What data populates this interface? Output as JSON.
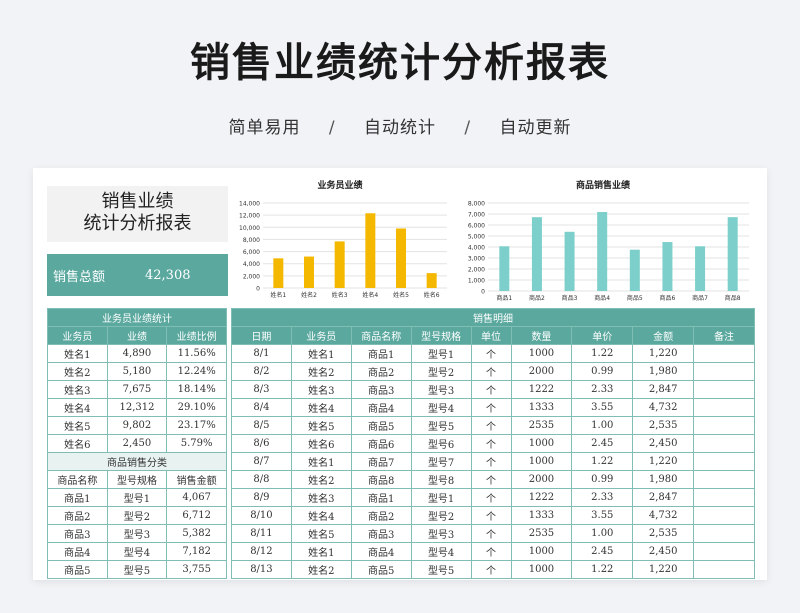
{
  "page": {
    "title": "销售业绩统计分析报表",
    "tags": [
      "简单易用",
      "自动统计",
      "自动更新"
    ],
    "separator": "/"
  },
  "sheet": {
    "title_line1": "销售业绩",
    "title_line2": "统计分析报表",
    "total_label": "销售总额",
    "total_value": "42,308"
  },
  "chart_data": [
    {
      "type": "bar",
      "title": "业务员业绩",
      "categories": [
        "姓名1",
        "姓名2",
        "姓名3",
        "姓名4",
        "姓名5",
        "姓名6"
      ],
      "values": [
        4890,
        5180,
        7675,
        12312,
        9802,
        2450
      ],
      "ylim": [
        0,
        14000
      ],
      "yticks": [
        0,
        2000,
        4000,
        6000,
        8000,
        10000,
        12000,
        14000
      ],
      "ytick_labels": [
        "0",
        "2,000",
        "4,000",
        "6,000",
        "8,000",
        "10,000",
        "12,000",
        "14,000"
      ],
      "grid": true,
      "color": "#f5b800"
    },
    {
      "type": "bar",
      "title": "商品销售业绩",
      "categories": [
        "商品1",
        "商品2",
        "商品3",
        "商品4",
        "商品5",
        "商品6",
        "商品7",
        "商品8"
      ],
      "values": [
        4067,
        6712,
        5382,
        7182,
        3755,
        4450,
        4067,
        6712
      ],
      "ylim": [
        0,
        8000
      ],
      "yticks": [
        0,
        1000,
        2000,
        3000,
        4000,
        5000,
        6000,
        7000,
        8000
      ],
      "ytick_labels": [
        "0",
        "1,000",
        "2,000",
        "3,000",
        "4,000",
        "5,000",
        "6,000",
        "7,000",
        "8,000"
      ],
      "grid": true,
      "color": "#7ccfcb"
    }
  ],
  "sales_stats": {
    "title": "业务员业绩统计",
    "headers": [
      "业务员",
      "业绩",
      "业绩比例"
    ],
    "rows": [
      [
        "姓名1",
        "4,890",
        "11.56%"
      ],
      [
        "姓名2",
        "5,180",
        "12.24%"
      ],
      [
        "姓名3",
        "7,675",
        "18.14%"
      ],
      [
        "姓名4",
        "12,312",
        "29.10%"
      ],
      [
        "姓名5",
        "9,802",
        "23.17%"
      ],
      [
        "姓名6",
        "2,450",
        "5.79%"
      ]
    ]
  },
  "product_stats": {
    "title": "商品销售分类",
    "headers": [
      "商品名称",
      "型号规格",
      "销售金额"
    ],
    "rows": [
      [
        "商品1",
        "型号1",
        "4,067"
      ],
      [
        "商品2",
        "型号2",
        "6,712"
      ],
      [
        "商品3",
        "型号3",
        "5,382"
      ],
      [
        "商品4",
        "型号4",
        "7,182"
      ],
      [
        "商品5",
        "型号5",
        "3,755"
      ]
    ]
  },
  "detail": {
    "title": "销售明细",
    "headers": [
      "日期",
      "业务员",
      "商品名称",
      "型号规格",
      "单位",
      "数量",
      "单价",
      "金额",
      "备注"
    ],
    "rows": [
      [
        "8/1",
        "姓名1",
        "商品1",
        "型号1",
        "个",
        "1000",
        "1.22",
        "1,220",
        ""
      ],
      [
        "8/2",
        "姓名2",
        "商品2",
        "型号2",
        "个",
        "2000",
        "0.99",
        "1,980",
        ""
      ],
      [
        "8/3",
        "姓名3",
        "商品3",
        "型号3",
        "个",
        "1222",
        "2.33",
        "2,847",
        ""
      ],
      [
        "8/4",
        "姓名4",
        "商品4",
        "型号4",
        "个",
        "1333",
        "3.55",
        "4,732",
        ""
      ],
      [
        "8/5",
        "姓名5",
        "商品5",
        "型号5",
        "个",
        "2535",
        "1.00",
        "2,535",
        ""
      ],
      [
        "8/6",
        "姓名6",
        "商品6",
        "型号6",
        "个",
        "1000",
        "2.45",
        "2,450",
        ""
      ],
      [
        "8/7",
        "姓名1",
        "商品7",
        "型号7",
        "个",
        "1000",
        "1.22",
        "1,220",
        ""
      ],
      [
        "8/8",
        "姓名2",
        "商品8",
        "型号8",
        "个",
        "2000",
        "0.99",
        "1,980",
        ""
      ],
      [
        "8/9",
        "姓名3",
        "商品1",
        "型号1",
        "个",
        "1222",
        "2.33",
        "2,847",
        ""
      ],
      [
        "8/10",
        "姓名4",
        "商品2",
        "型号2",
        "个",
        "1333",
        "3.55",
        "4,732",
        ""
      ],
      [
        "8/11",
        "姓名5",
        "商品3",
        "型号3",
        "个",
        "2535",
        "1.00",
        "2,535",
        ""
      ],
      [
        "8/12",
        "姓名1",
        "商品4",
        "型号4",
        "个",
        "1000",
        "2.45",
        "2,450",
        ""
      ],
      [
        "8/13",
        "姓名2",
        "商品5",
        "型号5",
        "个",
        "1000",
        "1.22",
        "1,220",
        ""
      ]
    ]
  }
}
